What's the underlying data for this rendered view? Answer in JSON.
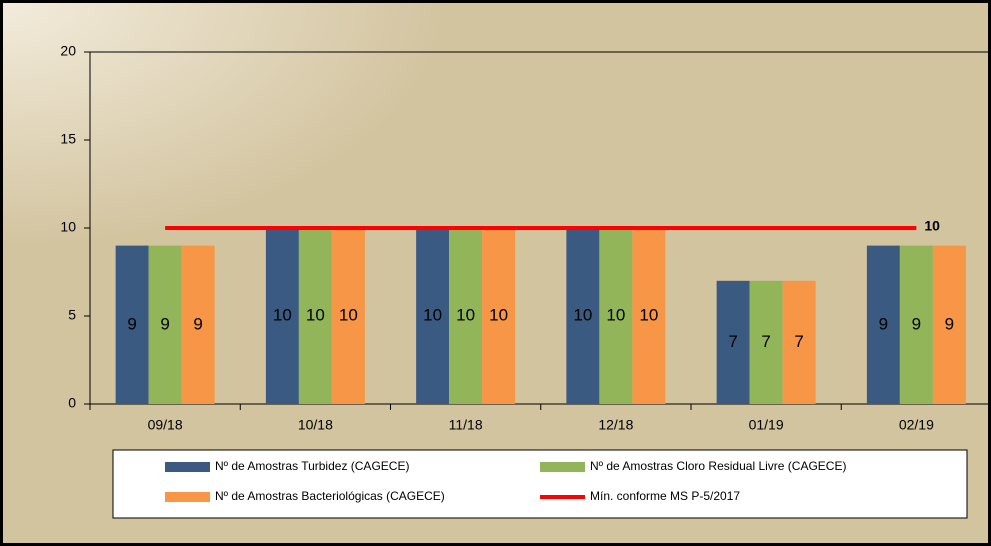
{
  "chart_data": {
    "type": "bar",
    "categories": [
      "09/18",
      "10/18",
      "11/18",
      "12/18",
      "01/19",
      "02/19"
    ],
    "series": [
      {
        "name": "Nº de Amostras Turbidez (CAGECE)",
        "color": "#3b5a82",
        "values": [
          9,
          10,
          10,
          10,
          7,
          9
        ]
      },
      {
        "name": "Nº de Amostras Cloro Residual Livre (CAGECE)",
        "color": "#93b55a",
        "values": [
          9,
          10,
          10,
          10,
          7,
          9
        ]
      },
      {
        "name": "Nº de Amostras Bacteriológicas (CAGECE)",
        "color": "#f79646",
        "values": [
          9,
          10,
          10,
          10,
          7,
          9
        ]
      },
      {
        "name": "Mín. conforme MS P-5/2017",
        "color": "#ff0000",
        "type": "line",
        "values": [
          10,
          10,
          10,
          10,
          10,
          10
        ]
      }
    ],
    "ylim": [
      0,
      20
    ],
    "yticks": [
      0,
      5,
      10,
      15,
      20
    ]
  }
}
